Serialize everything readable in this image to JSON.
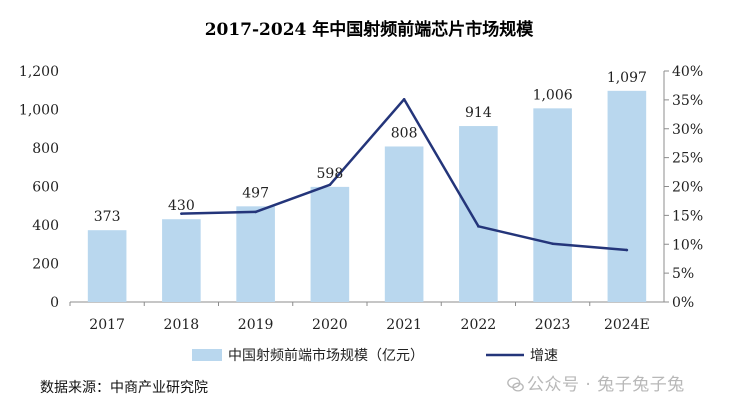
{
  "chart_data": {
    "type": "bar",
    "title": "2017-2024 年中国射频前端芯片市场规模",
    "categories": [
      "2017",
      "2018",
      "2019",
      "2020",
      "2021",
      "2022",
      "2023",
      "2024E"
    ],
    "series": [
      {
        "name": "中国射频前端市场规模（亿元）",
        "type": "bar",
        "axis": "left",
        "values": [
          373,
          430,
          497,
          598,
          808,
          914,
          1006,
          1097
        ],
        "labels": [
          "373",
          "430",
          "497",
          "598",
          "808",
          "914",
          "1,006",
          "1,097"
        ],
        "color": "#b9d7ee"
      },
      {
        "name": "增速",
        "type": "line",
        "axis": "right",
        "x": [
          "2018",
          "2019",
          "2020",
          "2021",
          "2022",
          "2023",
          "2024E"
        ],
        "values": [
          15.3,
          15.6,
          20.3,
          35.1,
          13.1,
          10.1,
          9.0
        ],
        "color": "#24357a"
      }
    ],
    "y_left": {
      "range": [
        0,
        1200
      ],
      "ticks": [
        "0",
        "200",
        "400",
        "600",
        "800",
        "1,000",
        "1,200"
      ]
    },
    "y_right": {
      "range": [
        0,
        40
      ],
      "ticks": [
        "0%",
        "5%",
        "10%",
        "15%",
        "20%",
        "25%",
        "30%",
        "35%",
        "40%"
      ]
    },
    "legend": "bottom"
  },
  "source": "数据来源：中商产业研究院",
  "watermark": "公众号 · 兔子兔子兔"
}
